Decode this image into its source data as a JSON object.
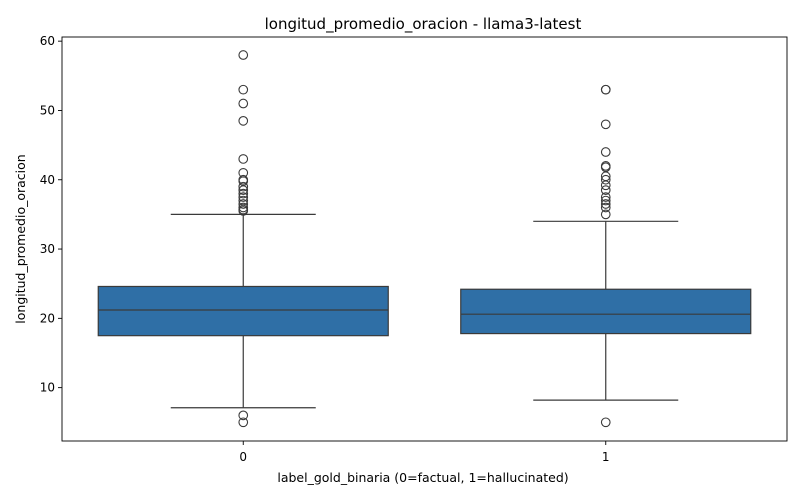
{
  "chart_data": {
    "type": "box",
    "title": "longitud_promedio_oracion - llama3-latest",
    "xlabel": "label_gold_binaria (0=factual, 1=hallucinated)",
    "ylabel": "longitud_promedio_oracion",
    "categories": [
      "0",
      "1"
    ],
    "ylim": [
      2.3,
      60.6
    ],
    "yticks": [
      10,
      20,
      30,
      40,
      50,
      60
    ],
    "grid": false,
    "box_color": "#2f6fa6",
    "edge_color": "#3a3a3a",
    "boxes": [
      {
        "category": "0",
        "whisker_low": 7.1,
        "q1": 17.5,
        "median": 21.2,
        "q3": 24.6,
        "whisker_high": 35.0,
        "outliers": [
          58.0,
          53.0,
          51.0,
          48.5,
          43.0,
          41.0,
          40.0,
          39.8,
          39.0,
          38.5,
          38.0,
          37.5,
          37.0,
          36.5,
          36.0,
          35.7,
          35.5,
          6.0,
          5.0
        ]
      },
      {
        "category": "1",
        "whisker_low": 8.2,
        "q1": 17.8,
        "median": 20.6,
        "q3": 24.2,
        "whisker_high": 34.0,
        "outliers": [
          53.0,
          53.0,
          48.0,
          44.0,
          42.0,
          41.8,
          40.5,
          40.0,
          39.2,
          38.5,
          37.5,
          37.0,
          36.5,
          36.0,
          35.0,
          5.0
        ]
      }
    ]
  }
}
